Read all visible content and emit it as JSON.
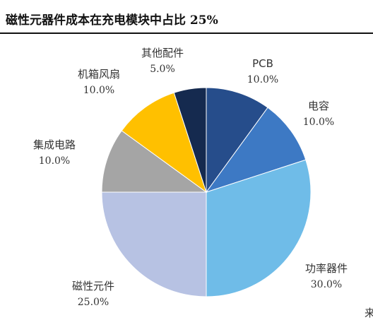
{
  "title": "磁性元器件成本在充电模块中占比 25%",
  "edge_text": "来",
  "chart_data": {
    "type": "pie",
    "slices": [
      {
        "label": "PCB",
        "value": 10.0,
        "value_label": "10.0%",
        "color": "#264d8b"
      },
      {
        "label": "电容",
        "value": 10.0,
        "value_label": "10.0%",
        "color": "#3d79c4"
      },
      {
        "label": "功率器件",
        "value": 30.0,
        "value_label": "30.0%",
        "color": "#6fbce8"
      },
      {
        "label": "磁性元件",
        "value": 25.0,
        "value_label": "25.0%",
        "color": "#b7c2e3"
      },
      {
        "label": "集成电路",
        "value": 10.0,
        "value_label": "10.0%",
        "color": "#a5a5a5"
      },
      {
        "label": "机箱风扇",
        "value": 10.0,
        "value_label": "10.0%",
        "color": "#ffc000"
      },
      {
        "label": "其他配件",
        "value": 5.0,
        "value_label": "5.0%",
        "color": "#152a4f"
      }
    ]
  }
}
